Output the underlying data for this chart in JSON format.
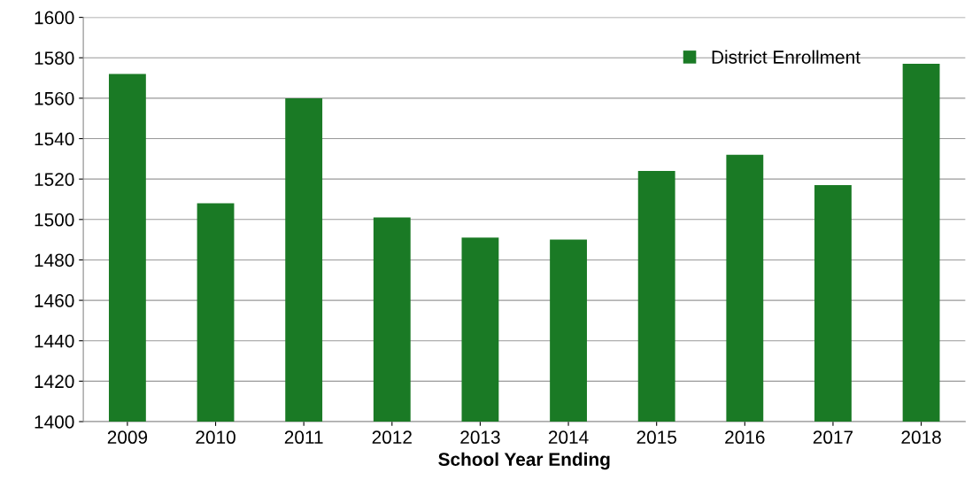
{
  "chart_data": {
    "type": "bar",
    "xlabel": "School Year Ending",
    "categories": [
      "2009",
      "2010",
      "2011",
      "2012",
      "2013",
      "2014",
      "2015",
      "2016",
      "2017",
      "2018"
    ],
    "series": [
      {
        "name": "District Enrollment",
        "color": "#1a7a25",
        "values": [
          1572,
          1508,
          1560,
          1501,
          1491,
          1490,
          1524,
          1532,
          1517,
          1577
        ]
      }
    ],
    "ylim": [
      1400,
      1600
    ],
    "yticks": [
      1400,
      1420,
      1440,
      1460,
      1480,
      1500,
      1520,
      1540,
      1560,
      1580,
      1600
    ],
    "grid": "y",
    "legend": "top right"
  }
}
